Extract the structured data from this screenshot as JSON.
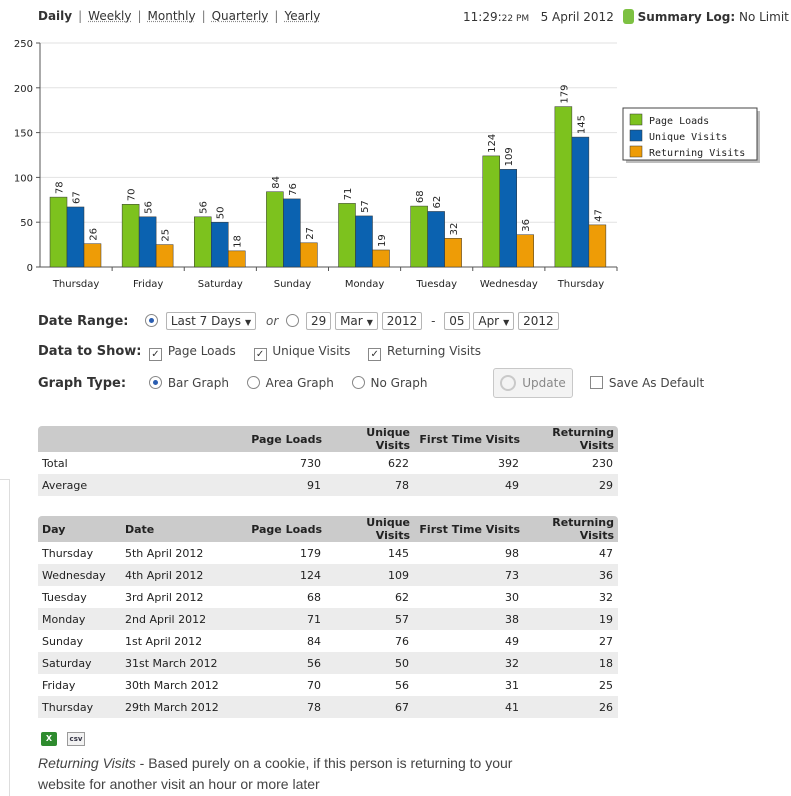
{
  "periods": {
    "items": [
      {
        "label": "Daily",
        "active": true
      },
      {
        "label": "Weekly",
        "active": false
      },
      {
        "label": "Monthly",
        "active": false
      },
      {
        "label": "Quarterly",
        "active": false
      },
      {
        "label": "Yearly",
        "active": false
      }
    ]
  },
  "status": {
    "time": "11:29:",
    "seconds_ampm": "22 PM",
    "date": "5 April 2012",
    "log_label": "Summary Log:",
    "log_value": "No Limit"
  },
  "colors": {
    "page_loads": "#7dc21e",
    "unique_visits": "#0b62b0",
    "returning_visits": "#ee9c06"
  },
  "chart_data": {
    "type": "bar",
    "categories": [
      "Thursday",
      "Friday",
      "Saturday",
      "Sunday",
      "Monday",
      "Tuesday",
      "Wednesday",
      "Thursday"
    ],
    "series": [
      {
        "name": "Page Loads",
        "values": [
          78,
          70,
          56,
          84,
          71,
          68,
          124,
          179
        ]
      },
      {
        "name": "Unique Visits",
        "values": [
          67,
          56,
          50,
          76,
          57,
          62,
          109,
          145
        ]
      },
      {
        "name": "Returning Visits",
        "values": [
          26,
          25,
          18,
          27,
          19,
          32,
          36,
          47
        ]
      }
    ],
    "ylim": [
      0,
      250
    ],
    "yticks": [
      0,
      50,
      100,
      150,
      200,
      250
    ],
    "grid": true,
    "legend": "right",
    "title": "",
    "xlabel": "",
    "ylabel": ""
  },
  "form": {
    "date_range_label": "Date Range:",
    "range_option": "Last 7 Days",
    "or_text": "or",
    "from_day": "29",
    "from_month": "Mar",
    "from_year": "2012",
    "dash": "-",
    "to_day": "05",
    "to_month": "Apr",
    "to_year": "2012",
    "data_label": "Data to Show:",
    "show_page_loads": "Page Loads",
    "show_unique": "Unique Visits",
    "show_returning": "Returning Visits",
    "graph_label": "Graph Type:",
    "graph_bar": "Bar Graph",
    "graph_area": "Area Graph",
    "graph_none": "No Graph",
    "update": "Update",
    "save_default": "Save As Default"
  },
  "summary_table": {
    "headers": [
      "",
      "Page Loads",
      "Unique Visits",
      "First Time Visits",
      "Returning Visits"
    ],
    "rows": [
      [
        "Total",
        "730",
        "622",
        "392",
        "230"
      ],
      [
        "Average",
        "91",
        "78",
        "49",
        "29"
      ]
    ]
  },
  "daily_table": {
    "headers": [
      "Day",
      "Date",
      "Page Loads",
      "Unique Visits",
      "First Time Visits",
      "Returning Visits"
    ],
    "rows": [
      [
        "Thursday",
        "5th April 2012",
        "179",
        "145",
        "98",
        "47"
      ],
      [
        "Wednesday",
        "4th April 2012",
        "124",
        "109",
        "73",
        "36"
      ],
      [
        "Tuesday",
        "3rd April 2012",
        "68",
        "62",
        "30",
        "32"
      ],
      [
        "Monday",
        "2nd April 2012",
        "71",
        "57",
        "38",
        "19"
      ],
      [
        "Sunday",
        "1st April 2012",
        "84",
        "76",
        "49",
        "27"
      ],
      [
        "Saturday",
        "31st March 2012",
        "56",
        "50",
        "32",
        "18"
      ],
      [
        "Friday",
        "30th March 2012",
        "70",
        "56",
        "31",
        "25"
      ],
      [
        "Thursday",
        "29th March 2012",
        "78",
        "67",
        "41",
        "26"
      ]
    ]
  },
  "exports": {
    "xls": "X",
    "csv": "csv"
  },
  "footnote": {
    "term": "Returning Visits",
    "text": " - Based purely on a cookie, if this person is returning to your website for another visit an hour or more later"
  }
}
